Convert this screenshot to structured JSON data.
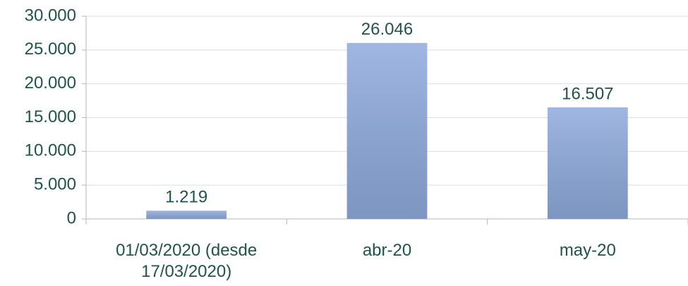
{
  "chart_data": {
    "type": "bar",
    "categories": [
      "01/03/2020 (desde 17/03/2020)",
      "abr-20",
      "may-20"
    ],
    "values": [
      1219,
      26046,
      16507
    ],
    "value_labels": [
      "1.219",
      "26.046",
      "16.507"
    ],
    "color": "#8eaadc",
    "ylim": [
      0,
      30000
    ],
    "yticks": [
      0,
      {
        "value": 5000,
        "label": "5.000"
      },
      {
        "value": 10000,
        "label": "10.000"
      },
      {
        "value": 15000,
        "label": "15.000"
      },
      {
        "value": 20000,
        "label": "20.000"
      },
      {
        "value": 25000,
        "label": "25.000"
      },
      {
        "value": 30000,
        "label": "30.000"
      }
    ],
    "grid": true
  }
}
